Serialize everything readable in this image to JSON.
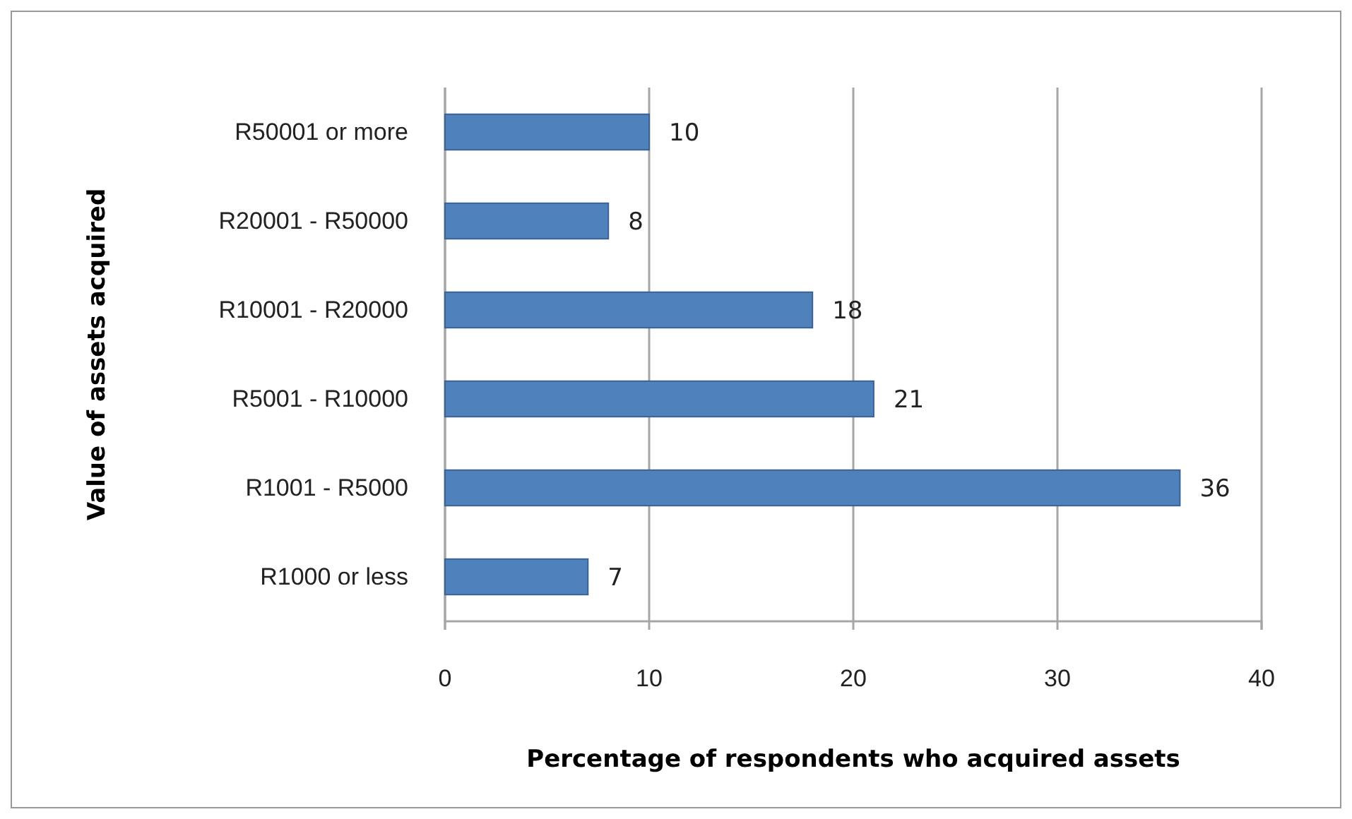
{
  "chart_data": {
    "type": "bar",
    "orientation": "horizontal",
    "categories": [
      "R50001 or more",
      "R20001 - R50000",
      "R10001 - R20000",
      "R5001 - R10000",
      "R1001 - R5000",
      "R1000 or less"
    ],
    "values": [
      10,
      8,
      18,
      21,
      36,
      7
    ],
    "color": "#4f81bd",
    "xlim": [
      0,
      40
    ],
    "xticks": [
      0,
      10,
      20,
      30,
      40
    ],
    "grid": "x",
    "data_labels": true,
    "xlabel": "Percentage of respondents who acquired assets",
    "ylabel": "Value of assets acquired"
  }
}
